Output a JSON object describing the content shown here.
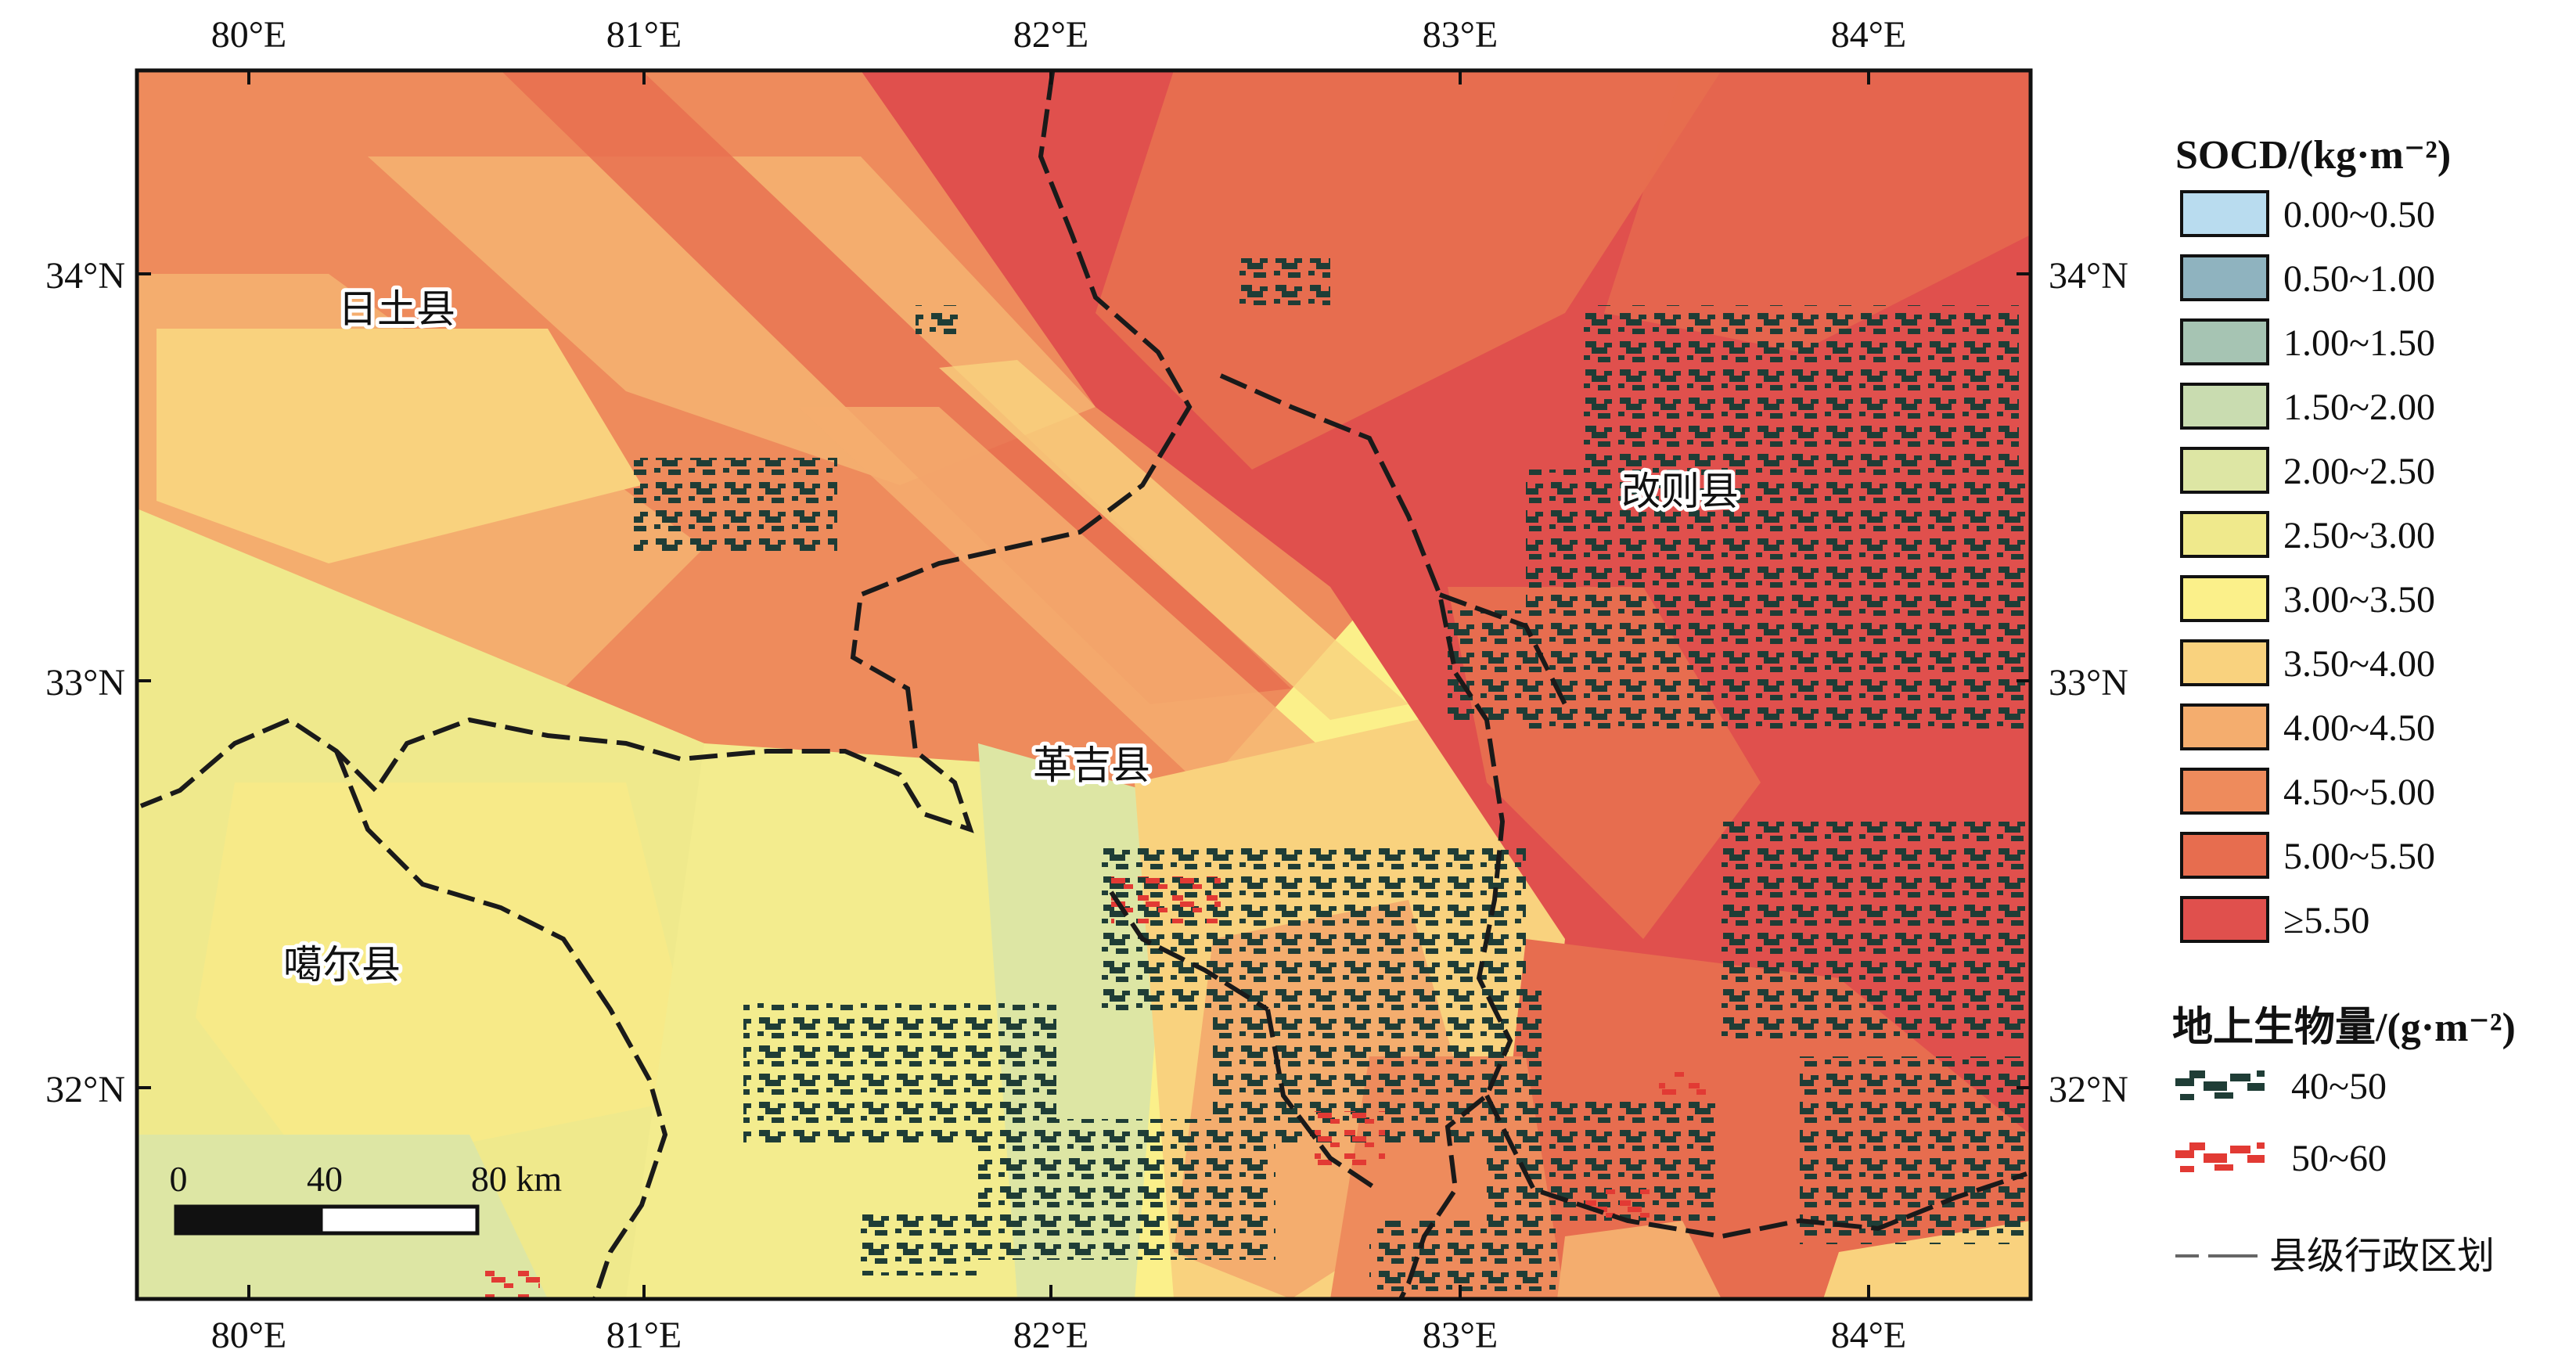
{
  "map": {
    "top_ticks": [
      "80°E",
      "81°E",
      "82°E",
      "83°E",
      "84°E"
    ],
    "bottom_ticks": [
      "80°E",
      "81°E",
      "82°E",
      "83°E",
      "84°E"
    ],
    "left_ticks": [
      "34°N",
      "33°N",
      "32°N"
    ],
    "right_ticks": [
      "34°N",
      "33°N",
      "32°N"
    ],
    "places": [
      "日土县",
      "改则县",
      "革吉县",
      "噶尔县"
    ],
    "scale_bar": {
      "labels": [
        "0",
        "40",
        "80 km"
      ]
    }
  },
  "legend": {
    "socd_title": "SOCD/(kg·m⁻²)",
    "socd_classes": [
      {
        "label": "0.00~0.50",
        "color": "#b9dcef"
      },
      {
        "label": "0.50~1.00",
        "color": "#8fb3bf"
      },
      {
        "label": "1.00~1.50",
        "color": "#a6c4b3"
      },
      {
        "label": "1.50~2.00",
        "color": "#c9dcb0"
      },
      {
        "label": "2.00~2.50",
        "color": "#dde6a4"
      },
      {
        "label": "2.50~3.00",
        "color": "#efe98c"
      },
      {
        "label": "3.00~3.50",
        "color": "#fbf08a"
      },
      {
        "label": "3.50~4.00",
        "color": "#f9d27e"
      },
      {
        "label": "4.00~4.50",
        "color": "#f4ad6e"
      },
      {
        "label": "4.50~5.00",
        "color": "#ee8b5c"
      },
      {
        "label": "5.00~5.50",
        "color": "#e76d4f"
      },
      {
        "label": "≥5.50",
        "color": "#e0504d"
      }
    ],
    "biomass_title": "地上生物量/(g·m⁻²)",
    "biomass_classes": [
      {
        "label": "40~50",
        "color": "#1f3d36"
      },
      {
        "label": "50~60",
        "color": "#e23a34"
      }
    ],
    "boundary_label": "县级行政区划"
  }
}
